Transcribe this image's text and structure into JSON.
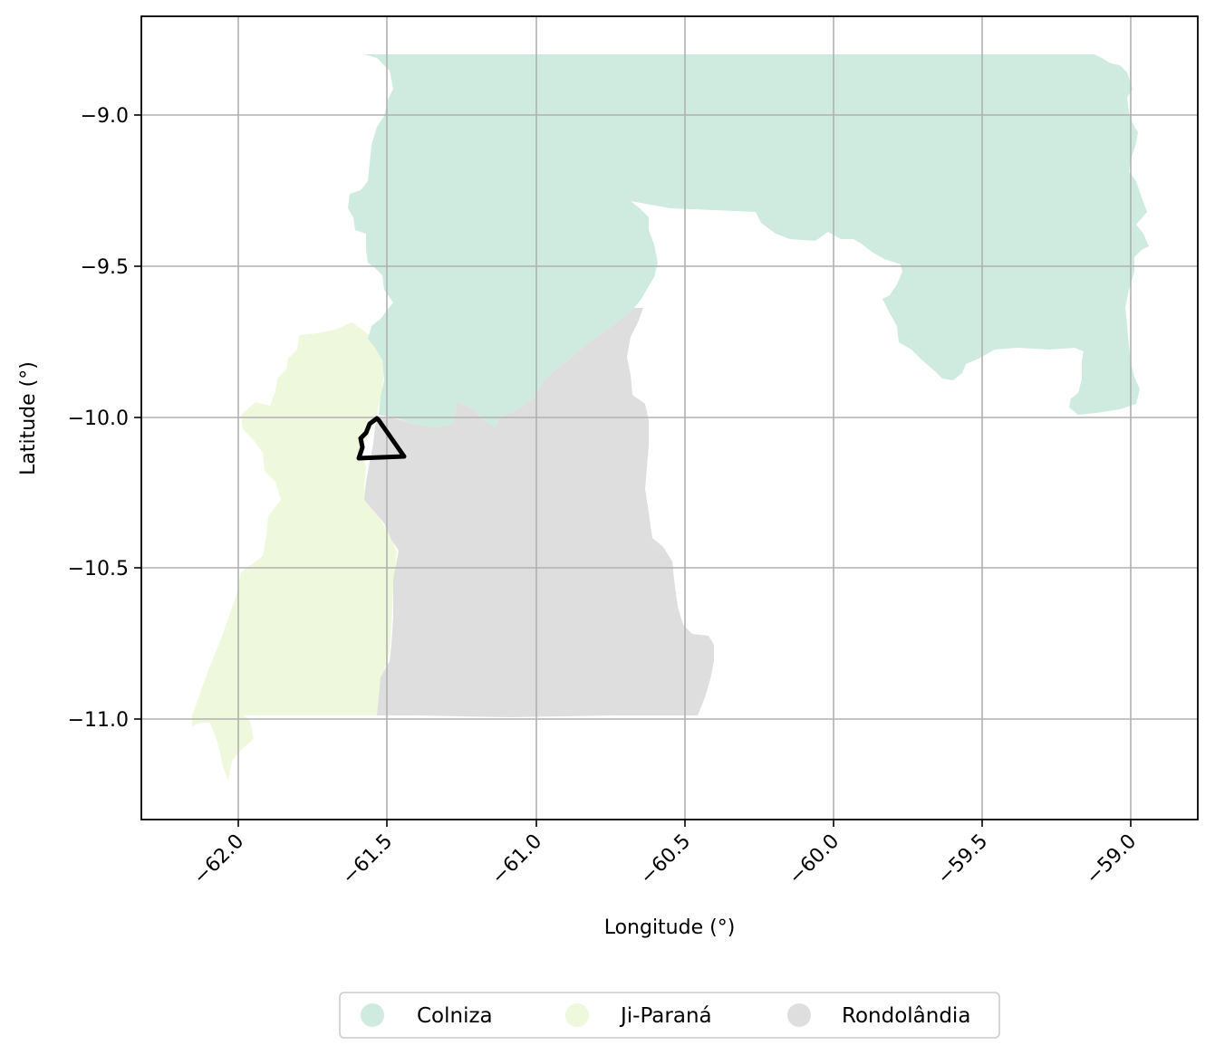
{
  "map": {
    "xlabel": "Longitude (°)",
    "ylabel": "Latitude (°)",
    "x_ticks": [
      "−62.0",
      "−61.5",
      "−61.0",
      "−60.5",
      "−60.0",
      "−59.5",
      "−59.0"
    ],
    "y_ticks": [
      "−9.0",
      "−9.5",
      "−10.0",
      "−10.5",
      "−11.0"
    ],
    "grid": true
  },
  "regions": [
    {
      "name": "Colniza",
      "color": "#cfebdf"
    },
    {
      "name": "Ji-Paraná",
      "color": "#eef8dc"
    },
    {
      "name": "Rondolândia",
      "color": "#dedede"
    }
  ],
  "study_area": {
    "outline_color": "#000000"
  },
  "legend": {
    "placement": "bottom-center",
    "items": [
      "Colniza",
      "Ji-Paraná",
      "Rondolândia"
    ]
  }
}
